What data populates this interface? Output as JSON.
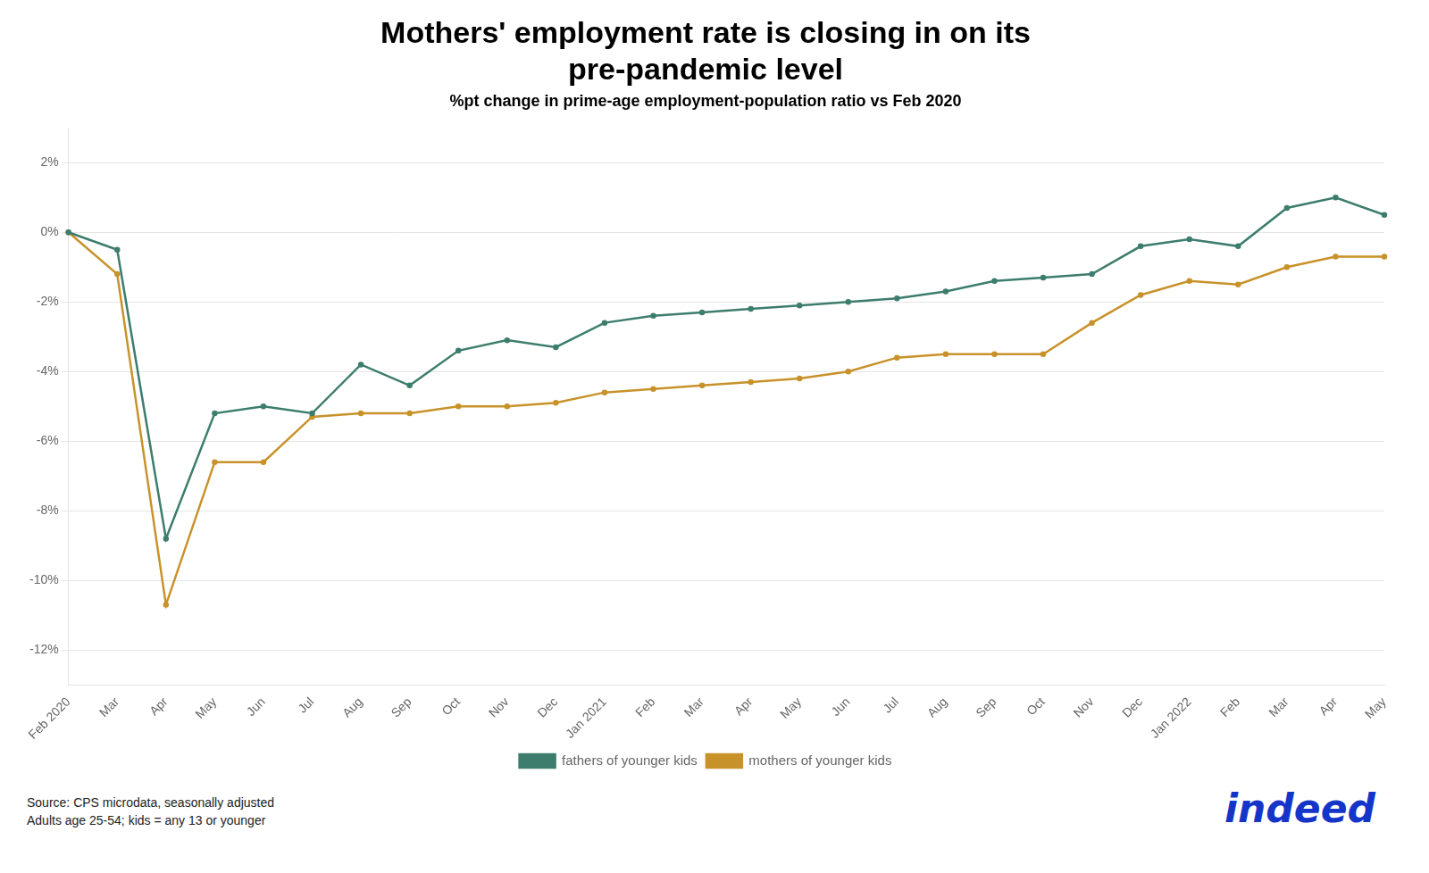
{
  "chart_data": {
    "type": "line",
    "title": [
      "Mothers' employment rate is closing in on its",
      "pre-pandemic level"
    ],
    "subtitle": "%pt change in prime-age employment-population ratio vs Feb 2020",
    "source": "Source: CPS microdata, seasonally adjusted\nAdults age 25-54; kids = any 13 or younger",
    "annotations": [
      {
        "text": "indeed",
        "color": "#1535c9"
      }
    ],
    "categories": [
      "Feb 2020",
      "Mar",
      "Apr",
      "May",
      "Jun",
      "Jul",
      "Aug",
      "Sep",
      "Oct",
      "Nov",
      "Dec",
      "Jan 2021",
      "Feb",
      "Mar",
      "Apr",
      "May",
      "Jun",
      "Jul",
      "Aug",
      "Sep",
      "Oct",
      "Nov",
      "Dec",
      "Jan 2022",
      "Feb",
      "Mar",
      "Apr",
      "May"
    ],
    "series": [
      {
        "name": "fathers of younger kids",
        "color": "#3d7d6e",
        "values": [
          0.0,
          -0.5,
          -8.8,
          -5.2,
          -5.0,
          -5.2,
          -3.8,
          -4.4,
          -3.4,
          -3.1,
          -3.3,
          -2.6,
          -2.4,
          -2.3,
          -2.2,
          -2.1,
          -2.0,
          -1.9,
          -1.7,
          -1.4,
          -1.3,
          -1.2,
          -0.4,
          -0.2,
          -0.4,
          0.7,
          1.0,
          0.5
        ]
      },
      {
        "name": "mothers of younger kids",
        "color": "#c8922a",
        "values": [
          0.0,
          -1.2,
          -10.7,
          -6.6,
          -6.6,
          -5.3,
          -5.2,
          -5.2,
          -5.0,
          -5.0,
          -4.9,
          -4.6,
          -4.5,
          -4.4,
          -4.3,
          -4.2,
          -4.0,
          -3.6,
          -3.5,
          -3.5,
          -3.5,
          -2.6,
          -1.8,
          -1.4,
          -1.5,
          -1.0,
          -0.7,
          -0.7
        ]
      }
    ],
    "ylim": [
      -13,
      3
    ],
    "yticks": [
      {
        "value": 2,
        "label": "2%"
      },
      {
        "value": 0,
        "label": "0%"
      },
      {
        "value": -2,
        "label": "-2%"
      },
      {
        "value": -4,
        "label": "-4%"
      },
      {
        "value": -6,
        "label": "-6%"
      },
      {
        "value": -8,
        "label": "-8%"
      },
      {
        "value": -10,
        "label": "-10%"
      },
      {
        "value": -12,
        "label": "-12%"
      }
    ],
    "grid": true,
    "legend": "bottom"
  }
}
